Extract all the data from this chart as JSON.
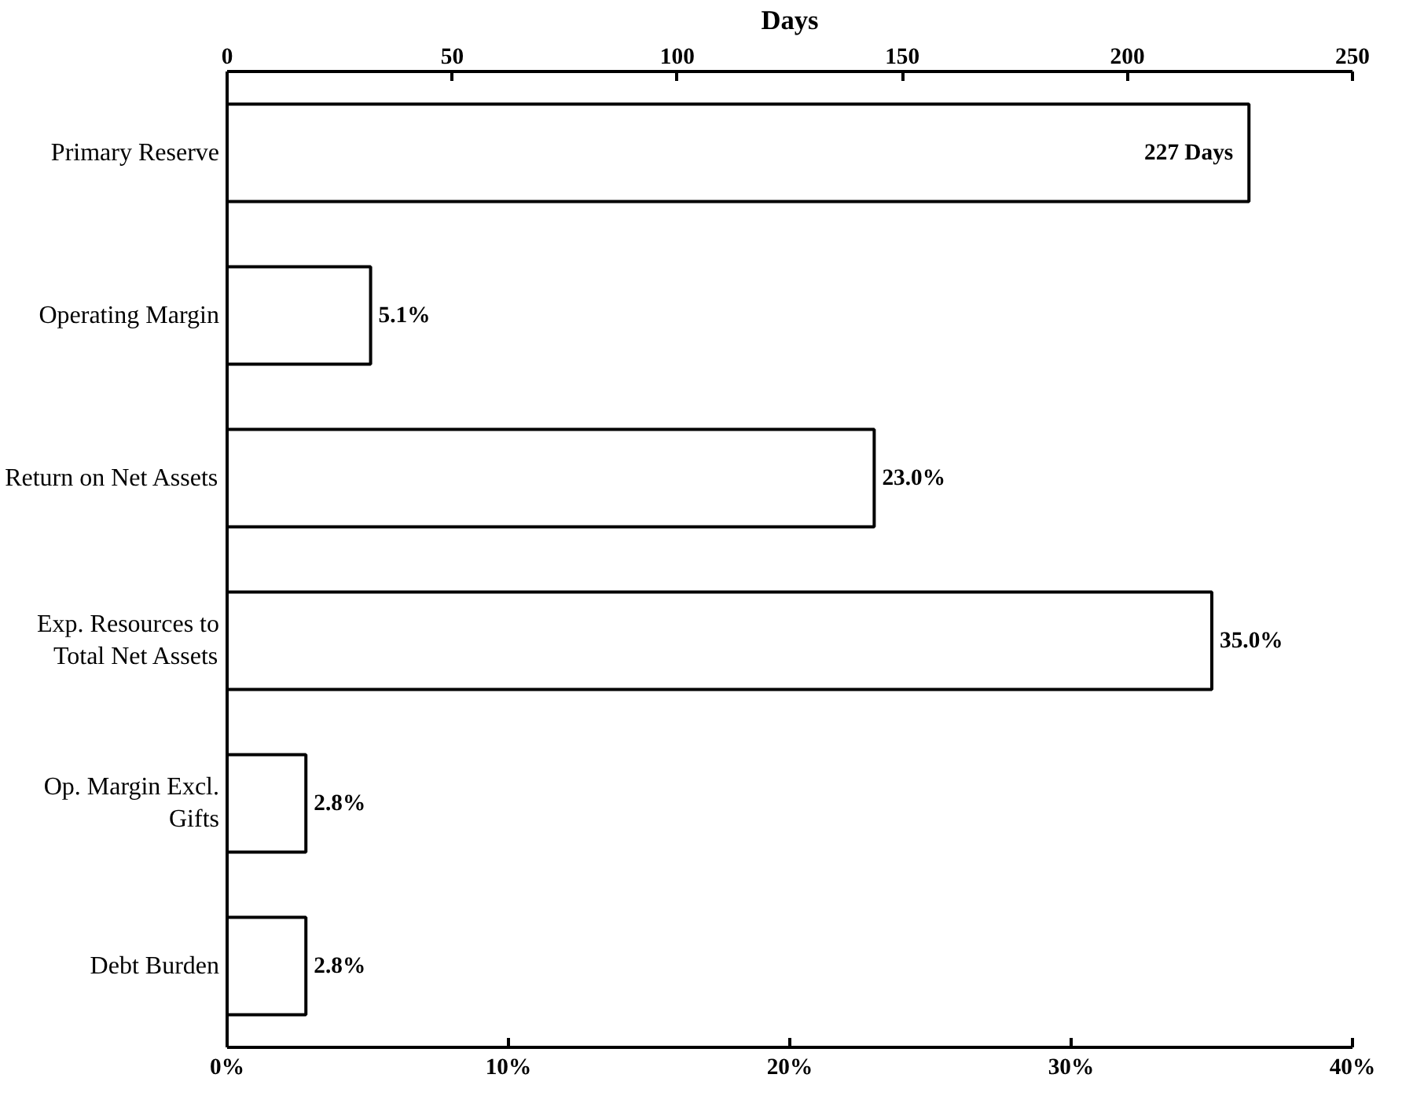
{
  "chart_data": {
    "type": "bar",
    "orientation": "horizontal",
    "categories": [
      "Primary Reserve",
      "Operating Margin",
      "Return on Net Assets",
      "Exp. Resources to\nTotal Net Assets",
      "Op. Margin Excl.\nGifts",
      "Debt Burden"
    ],
    "series": [
      {
        "color": "#ffffff",
        "axis": "x2",
        "values": [
          227,
          null,
          null,
          null,
          null,
          null
        ],
        "value_labels": [
          "227 Days",
          null,
          null,
          null,
          null,
          null
        ]
      },
      {
        "color": "#ffffff",
        "values": [
          null,
          5.1,
          23.0,
          35.0,
          2.8,
          2.8
        ],
        "value_labels": [
          null,
          "5.1%",
          "23.0%",
          "35.0%",
          "2.8%",
          "2.8%"
        ]
      }
    ],
    "xlim": [
      0,
      40
    ],
    "xticks": [
      {
        "value": 0,
        "label": "0%"
      },
      {
        "value": 10,
        "label": "10%"
      },
      {
        "value": 20,
        "label": "20%"
      },
      {
        "value": 30,
        "label": "30%"
      },
      {
        "value": 40,
        "label": "40%"
      }
    ],
    "x2lim": [
      0,
      250
    ],
    "x2ticks": [
      0,
      50,
      100,
      150,
      200,
      250
    ],
    "x2label": "Days",
    "grid": false
  }
}
